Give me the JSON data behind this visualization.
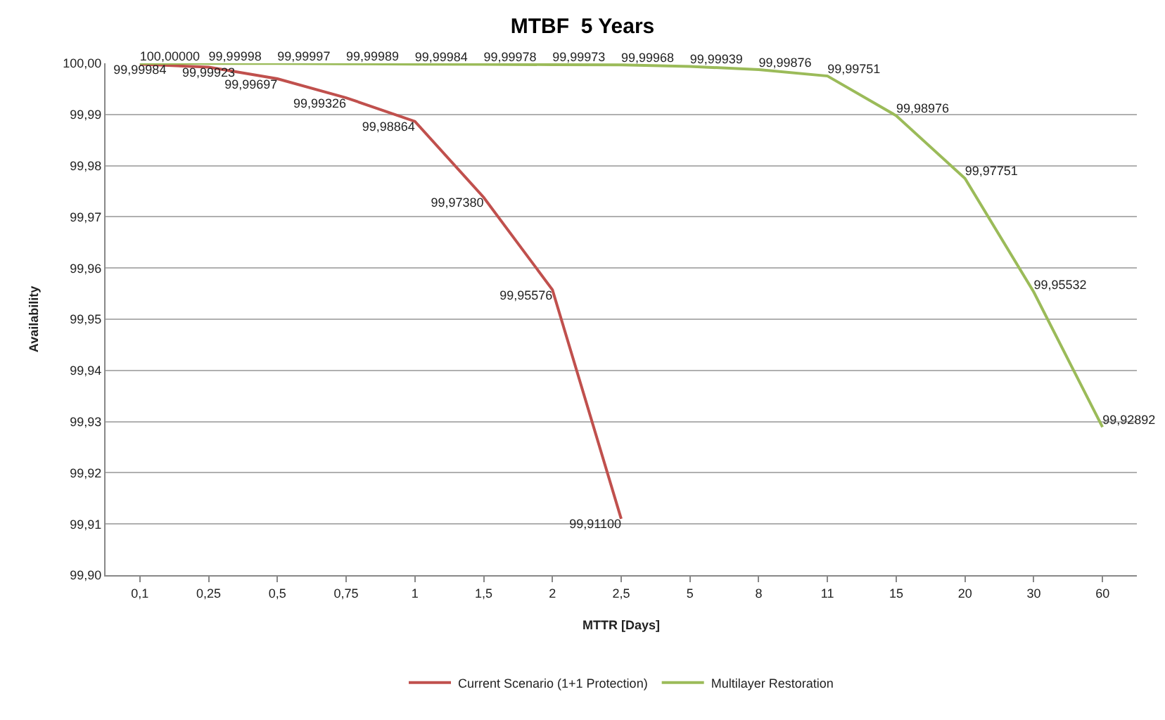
{
  "chart_data": {
    "type": "line",
    "title": "MTBF  5 Years",
    "xlabel": "MTTR [Days]",
    "ylabel": "Availability",
    "categories": [
      "0,1",
      "0,25",
      "0,5",
      "0,75",
      "1",
      "1,5",
      "2",
      "2,5",
      "5",
      "8",
      "11",
      "15",
      "20",
      "30",
      "60"
    ],
    "series": [
      {
        "name": "Current Scenario (1+1 Protection)",
        "color": "#c0504d",
        "values": [
          99.99984,
          99.99923,
          99.99697,
          99.99326,
          99.98864,
          99.9738,
          99.95576,
          99.911,
          null,
          null,
          null,
          null,
          null,
          null,
          null
        ],
        "value_labels": [
          "99,99984",
          "99,99923",
          "99,99697",
          "99,99326",
          "99,98864",
          "99,97380",
          "99,95576",
          "99,91100",
          null,
          null,
          null,
          null,
          null,
          null,
          null
        ]
      },
      {
        "name": "Multilayer Restoration",
        "color": "#9bbb59",
        "values": [
          100.0,
          99.99998,
          99.99997,
          99.99989,
          99.99984,
          99.99978,
          99.99973,
          99.99968,
          99.99939,
          99.99876,
          99.99751,
          99.98976,
          99.97751,
          99.95532,
          99.92892
        ],
        "value_labels": [
          "100,00000",
          "99,99998",
          "99,99997",
          "99,99989",
          "99,99984",
          "99,99978",
          "99,99973",
          "99,99968",
          "99,99939",
          "99,99876",
          "99,99751",
          "99,98976",
          "99,97751",
          "99,95532",
          "99,92892"
        ]
      }
    ],
    "ylim": [
      99.9,
      100.0
    ],
    "yticks": [
      {
        "value": 99.9,
        "label": "99,90"
      },
      {
        "value": 99.91,
        "label": "99,91"
      },
      {
        "value": 99.92,
        "label": "99,92"
      },
      {
        "value": 99.93,
        "label": "99,93"
      },
      {
        "value": 99.94,
        "label": "99,94"
      },
      {
        "value": 99.95,
        "label": "99,95"
      },
      {
        "value": 99.96,
        "label": "99,96"
      },
      {
        "value": 99.97,
        "label": "99,97"
      },
      {
        "value": 99.98,
        "label": "99,98"
      },
      {
        "value": 99.99,
        "label": "99,99"
      },
      {
        "value": 100.0,
        "label": "100,00"
      }
    ],
    "grid": "y",
    "legend": "bottom",
    "marker": "none",
    "line_style": "solid"
  }
}
